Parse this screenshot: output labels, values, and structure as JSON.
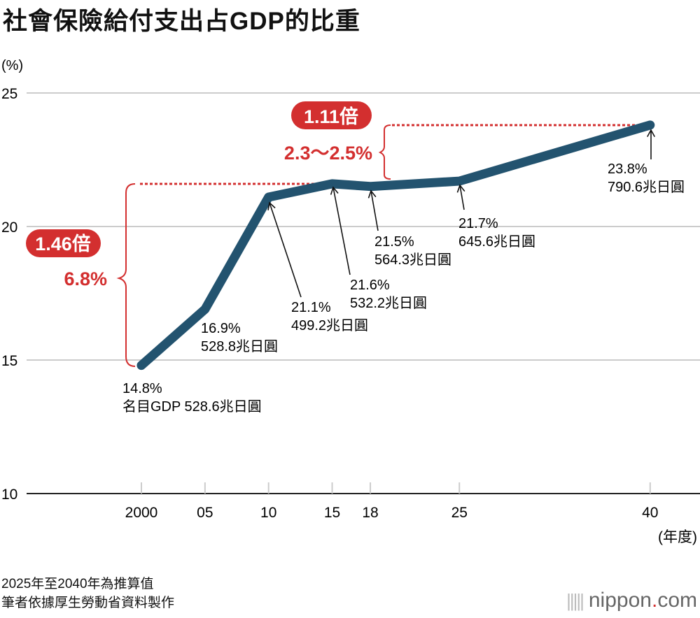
{
  "title": "社會保險給付支出占GDP的比重",
  "chart_data": {
    "type": "line",
    "title": "社會保險給付支出占GDP的比重",
    "ylabel": "(%)",
    "xlabel": "(年度)",
    "ylim": [
      10,
      25
    ],
    "yticks": [
      "10",
      "15",
      "20",
      "25"
    ],
    "grid": true,
    "x": [
      2000,
      2005,
      2010,
      2015,
      2018,
      2025,
      2040
    ],
    "xtick_labels": [
      "2000",
      "05",
      "10",
      "15",
      "18",
      "25",
      "40"
    ],
    "series": [
      {
        "values": [
          14.8,
          16.9,
          21.1,
          21.6,
          21.5,
          21.7,
          23.8
        ],
        "color": "#23536f"
      }
    ],
    "data_labels": [
      {
        "pct": "14.8%",
        "amount": "名目GDP 528.6兆日圓"
      },
      {
        "pct": "16.9%",
        "amount": "528.8兆日圓"
      },
      {
        "pct": "21.1%",
        "amount": "499.2兆日圓"
      },
      {
        "pct": "21.6%",
        "amount": "532.2兆日圓"
      },
      {
        "pct": "21.5%",
        "amount": "564.3兆日圓"
      },
      {
        "pct": "21.7%",
        "amount": "645.6兆日圓"
      },
      {
        "pct": "23.8%",
        "amount": "790.6兆日圓"
      }
    ],
    "annotations": [
      {
        "badge": "1.46倍",
        "range": "6.8%",
        "from": 2000,
        "to": 2015
      },
      {
        "badge": "1.11倍",
        "range": "2.3〜2.5%",
        "from": 2018,
        "to": 2040
      }
    ],
    "accent_color": "#d32f2f"
  },
  "footer": {
    "note": "2025年至2040年為推算值",
    "source": "筆者依據厚生勞動省資料製作"
  },
  "logo": {
    "name": "nippon",
    "dot": ".",
    "tld": "com"
  }
}
